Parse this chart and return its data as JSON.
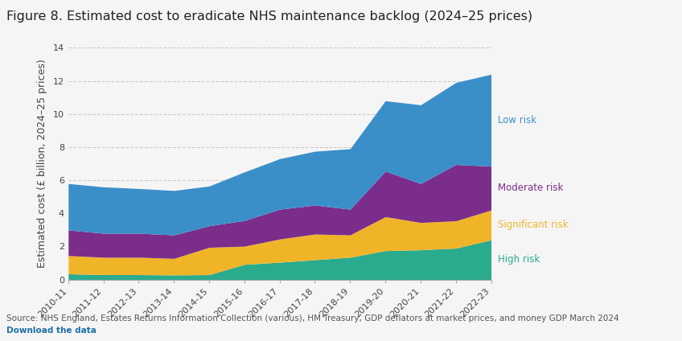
{
  "title": "Figure 8. Estimated cost to eradicate NHS maintenance backlog (2024–25 prices)",
  "ylabel": "Estimated cost (£ billion, 2024–25 prices)",
  "source": "Source: NHS England, Estates Returns Information Collection (various), HM Treasury, GDP deflators at market prices, and money GDP March 2024",
  "download_text": "Download the data",
  "years": [
    "2010-11",
    "2011-12",
    "2012-13",
    "2013-14",
    "2014-15",
    "2015-16",
    "2016-17",
    "2017-18",
    "2018-19",
    "2019-20",
    "2020-21",
    "2021-22",
    "2022-23"
  ],
  "high_risk": [
    0.35,
    0.3,
    0.3,
    0.28,
    0.3,
    0.92,
    1.05,
    1.2,
    1.35,
    1.75,
    1.8,
    1.9,
    2.4
  ],
  "significant_risk": [
    1.1,
    1.05,
    1.05,
    1.0,
    1.65,
    1.1,
    1.4,
    1.55,
    1.35,
    2.05,
    1.65,
    1.65,
    1.8
  ],
  "moderate_risk": [
    1.55,
    1.45,
    1.45,
    1.42,
    1.3,
    1.55,
    1.8,
    1.75,
    1.55,
    2.75,
    2.35,
    3.4,
    2.65
  ],
  "low_risk": [
    2.8,
    2.8,
    2.7,
    2.68,
    2.4,
    2.93,
    3.05,
    3.25,
    3.65,
    4.25,
    4.75,
    4.95,
    5.55
  ],
  "colors": {
    "high_risk": "#2aab8e",
    "significant_risk": "#f0b429",
    "moderate_risk": "#7b2d8b",
    "low_risk": "#3a8fc9"
  },
  "legend_labels": {
    "low_risk": "Low risk",
    "moderate_risk": "Moderate risk",
    "significant_risk": "Significant risk",
    "high_risk": "High risk"
  },
  "legend_colors": {
    "low_risk": "#3a8fc9",
    "moderate_risk": "#7b2d8b",
    "significant_risk": "#f0b429",
    "high_risk": "#2aab8e"
  },
  "ylim": [
    0,
    14
  ],
  "yticks": [
    0,
    2,
    4,
    6,
    8,
    10,
    12,
    14
  ],
  "background_color": "#f5f5f5",
  "grid_color": "#cccccc",
  "title_fontsize": 11.5,
  "label_fontsize": 9,
  "tick_fontsize": 8,
  "source_fontsize": 7.5
}
